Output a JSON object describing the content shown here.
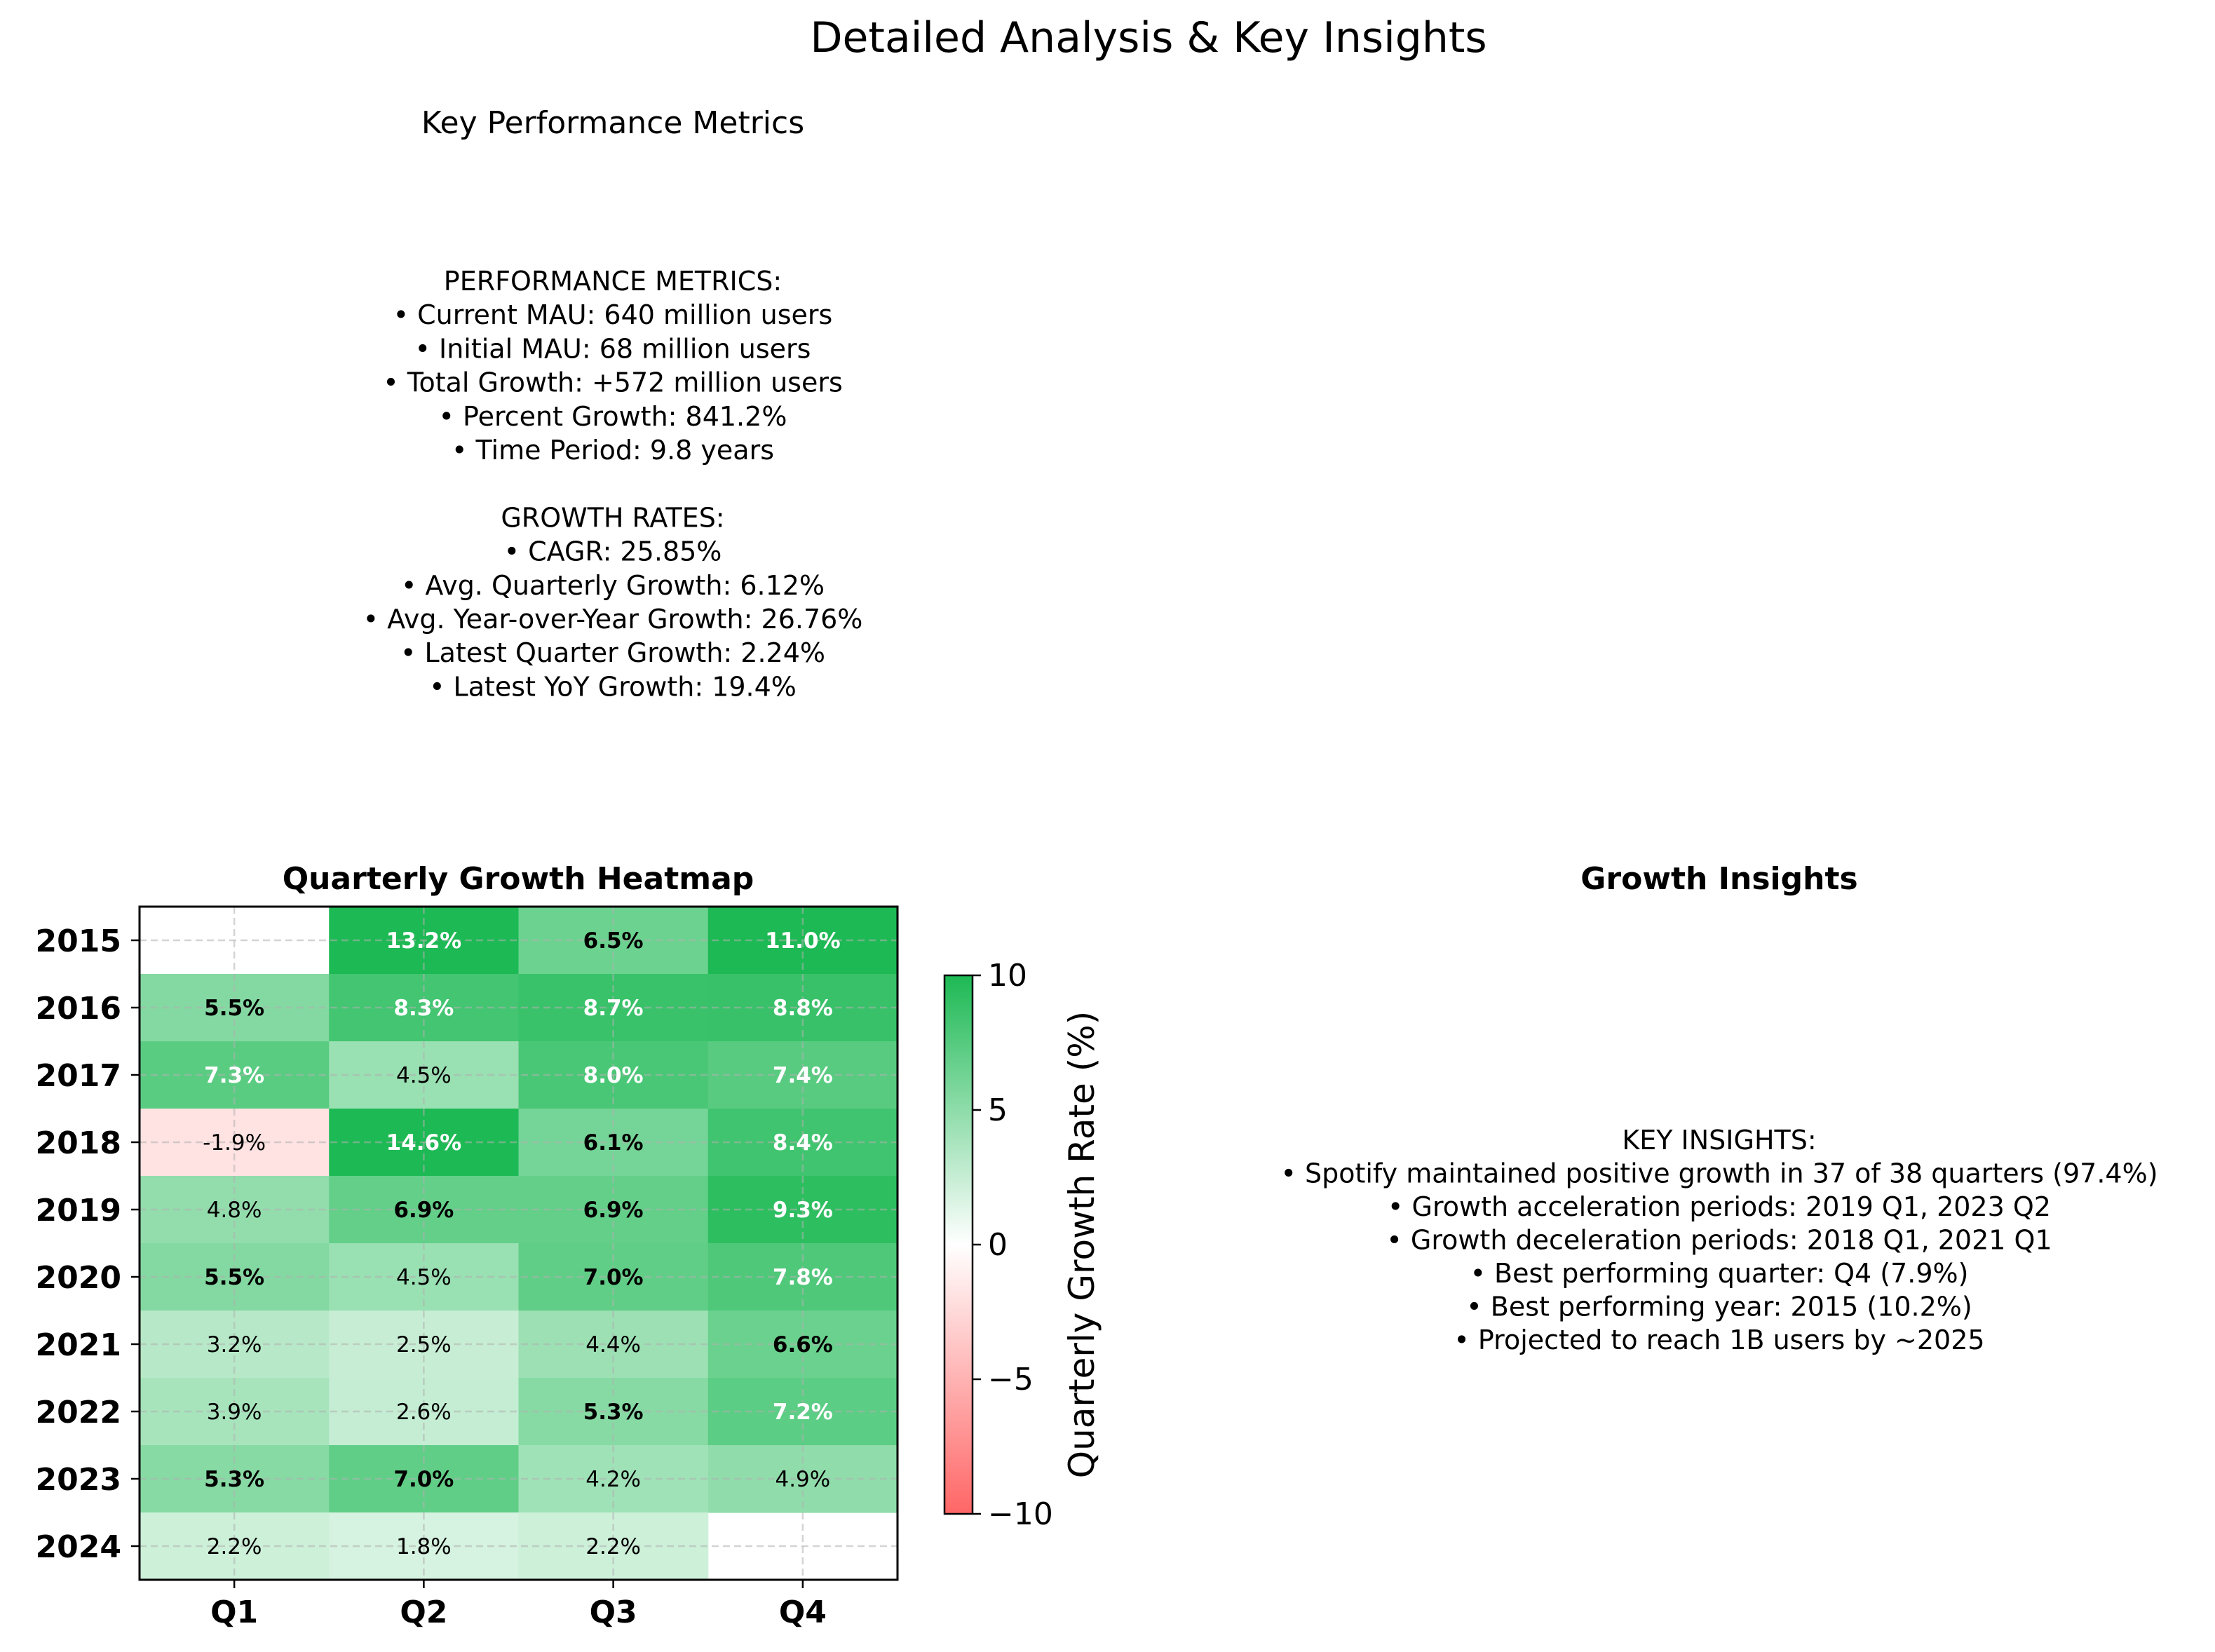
{
  "figure": {
    "title": "Detailed Analysis & Key Insights"
  },
  "metrics_panel": {
    "title": "Key Performance Metrics",
    "lines": [
      "PERFORMANCE METRICS:",
      "• Current MAU: 640 million users",
      "• Initial MAU: 68 million users",
      "• Total Growth: +572 million users",
      "• Percent Growth: 841.2%",
      "• Time Period: 9.8 years",
      "",
      "GROWTH RATES:",
      "• CAGR: 25.85%",
      "• Avg. Quarterly Growth: 6.12%",
      "• Avg. Year-over-Year Growth: 26.76%",
      "• Latest Quarter Growth: 2.24%",
      "• Latest YoY Growth: 19.4%"
    ]
  },
  "insights_panel": {
    "title": "Growth Insights",
    "lines": [
      "KEY INSIGHTS:",
      "• Spotify maintained positive growth in 37 of 38 quarters (97.4%)",
      "• Growth acceleration periods: 2019 Q1, 2023 Q2",
      "• Growth deceleration periods: 2018 Q1, 2021 Q1",
      "• Best performing quarter: Q4 (7.9%)",
      "• Best performing year: 2015 (10.2%)",
      "• Projected to reach 1B users by ~2025"
    ]
  },
  "chart_data": {
    "type": "heatmap",
    "title": "Quarterly Growth Heatmap",
    "x_categories": [
      "Q1",
      "Q2",
      "Q3",
      "Q4"
    ],
    "y_categories": [
      "2015",
      "2016",
      "2017",
      "2018",
      "2019",
      "2020",
      "2021",
      "2022",
      "2023",
      "2024"
    ],
    "values": [
      [
        null,
        13.2,
        6.5,
        11.0
      ],
      [
        5.5,
        8.3,
        8.7,
        8.8
      ],
      [
        7.3,
        4.5,
        8.0,
        7.4
      ],
      [
        -1.9,
        14.6,
        6.1,
        8.4
      ],
      [
        4.8,
        6.9,
        6.9,
        9.3
      ],
      [
        5.5,
        4.5,
        7.0,
        7.8
      ],
      [
        3.2,
        2.5,
        4.4,
        6.6
      ],
      [
        3.9,
        2.6,
        5.3,
        7.2
      ],
      [
        5.3,
        7.0,
        4.2,
        4.9
      ],
      [
        2.2,
        1.8,
        2.2,
        null
      ]
    ],
    "value_format": "%",
    "colorbar": {
      "label": "Quarterly Growth Rate (%)",
      "range": [
        -10,
        10
      ],
      "ticks": [
        10,
        5,
        0,
        -5,
        -10
      ],
      "tick_labels": [
        "10",
        "5",
        "0",
        "−5",
        "−10"
      ],
      "colors": {
        "low": "#ff6666",
        "mid": "#ffffff",
        "high": "#1db954"
      }
    },
    "grid": true
  }
}
